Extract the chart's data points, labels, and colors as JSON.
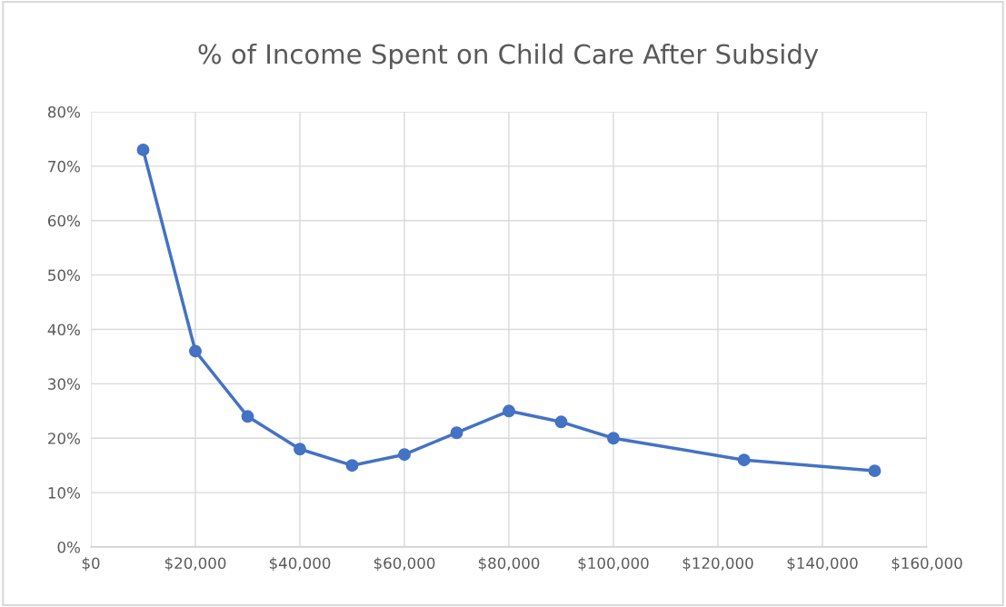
{
  "chart_data": {
    "type": "line",
    "title": "% of Income Spent on Child Care After Subsidy",
    "x": [
      10000,
      20000,
      30000,
      40000,
      50000,
      60000,
      70000,
      80000,
      90000,
      100000,
      125000,
      150000
    ],
    "series": [
      {
        "color": "#4472c4",
        "values": [
          73,
          36,
          24,
          18,
          15,
          17,
          21,
          25,
          23,
          20,
          16,
          14
        ]
      }
    ],
    "xlim": [
      0,
      160000
    ],
    "xticks": [
      {
        "value": 0,
        "label": "$0"
      },
      {
        "value": 20000,
        "label": "$20,000"
      },
      {
        "value": 40000,
        "label": "$40,000"
      },
      {
        "value": 60000,
        "label": "$60,000"
      },
      {
        "value": 80000,
        "label": "$80,000"
      },
      {
        "value": 100000,
        "label": "$100,000"
      },
      {
        "value": 120000,
        "label": "$120,000"
      },
      {
        "value": 140000,
        "label": "$140,000"
      },
      {
        "value": 160000,
        "label": "$160,000"
      }
    ],
    "ylim": [
      0,
      80
    ],
    "yticks": [
      {
        "value": 0,
        "label": "0%"
      },
      {
        "value": 10,
        "label": "10%"
      },
      {
        "value": 20,
        "label": "20%"
      },
      {
        "value": 30,
        "label": "30%"
      },
      {
        "value": 40,
        "label": "40%"
      },
      {
        "value": 50,
        "label": "50%"
      },
      {
        "value": 60,
        "label": "60%"
      },
      {
        "value": 70,
        "label": "70%"
      },
      {
        "value": 80,
        "label": "80%"
      }
    ],
    "grid": true,
    "marker": "circle",
    "line_style": "solid"
  }
}
